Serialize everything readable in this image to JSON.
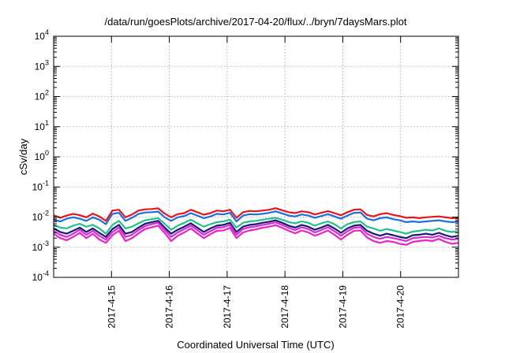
{
  "chart_data": {
    "type": "line",
    "title": "/data/run/goesPlots/archive/2017-04-20/flux/../bryn/7daysMars.plot",
    "xlabel": "Coordinated Universal Time (UTC)",
    "ylabel": "cSv/day",
    "x_range": [
      "2017-04-14T00:00",
      "2017-04-21T00:00"
    ],
    "x_ticks": [
      "2017-4-15",
      "2017-4-16",
      "2017-4-17",
      "2017-4-18",
      "2017-4-19",
      "2017-4-20"
    ],
    "y_scale": "log",
    "ylim": [
      0.0001,
      10000
    ],
    "y_ticks": [
      {
        "base": "10",
        "exp": "4"
      },
      {
        "base": "10",
        "exp": "3"
      },
      {
        "base": "10",
        "exp": "2"
      },
      {
        "base": "10",
        "exp": "1"
      },
      {
        "base": "10",
        "exp": "0"
      },
      {
        "base": "10",
        "exp": "-1"
      },
      {
        "base": "10",
        "exp": "-2"
      },
      {
        "base": "10",
        "exp": "-3"
      },
      {
        "base": "10",
        "exp": "-4"
      }
    ],
    "grid": true,
    "series": [
      {
        "color": "#e8141c",
        "values": [
          0.0115,
          0.0095,
          0.0112,
          0.0128,
          0.0115,
          0.0098,
          0.013,
          0.0105,
          0.0075,
          0.0165,
          0.0175,
          0.0098,
          0.0122,
          0.0165,
          0.018,
          0.0185,
          0.0195,
          0.013,
          0.0098,
          0.0125,
          0.0135,
          0.0175,
          0.0145,
          0.012,
          0.0135,
          0.0165,
          0.0155,
          0.0175,
          0.0095,
          0.0145,
          0.016,
          0.0155,
          0.0165,
          0.0175,
          0.0198,
          0.0168,
          0.0145,
          0.0135,
          0.0155,
          0.0145,
          0.0122,
          0.0138,
          0.0158,
          0.0135,
          0.0115,
          0.0145,
          0.0175,
          0.018,
          0.0118,
          0.0105,
          0.0125,
          0.0135,
          0.0118,
          0.0108,
          0.0095,
          0.0098,
          0.0092,
          0.0098,
          0.0102,
          0.0105,
          0.0098,
          0.0092,
          0.0095
        ]
      },
      {
        "color": "#1c6fe0",
        "values": [
          0.0082,
          0.0072,
          0.0088,
          0.0098,
          0.0088,
          0.0075,
          0.0098,
          0.0082,
          0.0058,
          0.0128,
          0.0138,
          0.0075,
          0.0095,
          0.0128,
          0.0142,
          0.0145,
          0.0152,
          0.0098,
          0.0075,
          0.0098,
          0.0108,
          0.0135,
          0.0112,
          0.0092,
          0.0105,
          0.0128,
          0.0122,
          0.0138,
          0.0072,
          0.0112,
          0.0125,
          0.0122,
          0.0128,
          0.0138,
          0.0155,
          0.0132,
          0.0112,
          0.0105,
          0.0122,
          0.0112,
          0.0095,
          0.0108,
          0.0125,
          0.0105,
          0.0088,
          0.0112,
          0.0138,
          0.0142,
          0.0088,
          0.0078,
          0.0092,
          0.0098,
          0.0085,
          0.0078,
          0.0068,
          0.0072,
          0.0068,
          0.0072,
          0.0075,
          0.0078,
          0.0072,
          0.0068,
          0.007
        ]
      },
      {
        "color": "#22c08c",
        "values": [
          0.0055,
          0.0045,
          0.0042,
          0.0052,
          0.006,
          0.0048,
          0.0055,
          0.0042,
          0.0028,
          0.0055,
          0.0075,
          0.0042,
          0.0048,
          0.0062,
          0.0078,
          0.0085,
          0.0092,
          0.006,
          0.0038,
          0.0052,
          0.0065,
          0.0082,
          0.0062,
          0.0048,
          0.0058,
          0.0068,
          0.0072,
          0.0082,
          0.0045,
          0.0065,
          0.0072,
          0.0075,
          0.0082,
          0.0088,
          0.0095,
          0.0082,
          0.0068,
          0.0062,
          0.0072,
          0.0065,
          0.0052,
          0.0062,
          0.0072,
          0.0058,
          0.0042,
          0.0058,
          0.0068,
          0.0072,
          0.0048,
          0.0042,
          0.0035,
          0.004,
          0.0036,
          0.0032,
          0.0028,
          0.0033,
          0.0035,
          0.0038,
          0.0036,
          0.0042,
          0.0035,
          0.0032,
          0.0034
        ]
      },
      {
        "color": "#1a1a6e",
        "values": [
          0.0042,
          0.0032,
          0.0028,
          0.0035,
          0.0045,
          0.0032,
          0.0042,
          0.003,
          0.0022,
          0.004,
          0.0055,
          0.0028,
          0.0032,
          0.0045,
          0.006,
          0.0068,
          0.0075,
          0.0045,
          0.0028,
          0.0038,
          0.0048,
          0.0062,
          0.0045,
          0.0032,
          0.0042,
          0.0052,
          0.0055,
          0.0065,
          0.0032,
          0.0048,
          0.0055,
          0.0058,
          0.0065,
          0.007,
          0.0078,
          0.0065,
          0.0052,
          0.0045,
          0.0055,
          0.0048,
          0.0038,
          0.0045,
          0.0055,
          0.0042,
          0.003,
          0.0042,
          0.0052,
          0.0055,
          0.0035,
          0.0028,
          0.0024,
          0.0028,
          0.0025,
          0.0022,
          0.002,
          0.0025,
          0.0026,
          0.0028,
          0.0026,
          0.003,
          0.0025,
          0.0022,
          0.0024
        ]
      },
      {
        "color": "#d22bd8",
        "values": [
          0.0035,
          0.0026,
          0.0022,
          0.0028,
          0.0038,
          0.0026,
          0.0035,
          0.0024,
          0.0018,
          0.0032,
          0.0045,
          0.0022,
          0.0026,
          0.0037,
          0.005,
          0.0058,
          0.0065,
          0.0038,
          0.0022,
          0.0031,
          0.004,
          0.0052,
          0.0037,
          0.0026,
          0.0034,
          0.0044,
          0.0046,
          0.0055,
          0.0026,
          0.004,
          0.0046,
          0.0049,
          0.0055,
          0.006,
          0.0067,
          0.0055,
          0.0044,
          0.0037,
          0.0046,
          0.004,
          0.0031,
          0.0037,
          0.0046,
          0.0034,
          0.0024,
          0.0034,
          0.0044,
          0.0046,
          0.0028,
          0.0022,
          0.0019,
          0.0022,
          0.002,
          0.0018,
          0.0016,
          0.002,
          0.0021,
          0.0022,
          0.0021,
          0.0024,
          0.002,
          0.0018,
          0.0019
        ]
      },
      {
        "color": "#f020c8",
        "values": [
          0.0028,
          0.002,
          0.0017,
          0.0022,
          0.003,
          0.002,
          0.0028,
          0.0018,
          0.0014,
          0.0025,
          0.0035,
          0.0016,
          0.002,
          0.0029,
          0.004,
          0.0046,
          0.0052,
          0.003,
          0.0016,
          0.0024,
          0.0031,
          0.0042,
          0.0029,
          0.002,
          0.0027,
          0.0035,
          0.0036,
          0.0044,
          0.002,
          0.0031,
          0.0036,
          0.0039,
          0.0044,
          0.0048,
          0.0054,
          0.0044,
          0.0035,
          0.0029,
          0.0036,
          0.0031,
          0.0024,
          0.0029,
          0.0036,
          0.0026,
          0.0018,
          0.0026,
          0.0035,
          0.0036,
          0.0021,
          0.0016,
          0.0014,
          0.0016,
          0.0015,
          0.0013,
          0.0012,
          0.0015,
          0.0016,
          0.0017,
          0.0016,
          0.0019,
          0.0015,
          0.0013,
          0.0014
        ]
      }
    ]
  }
}
